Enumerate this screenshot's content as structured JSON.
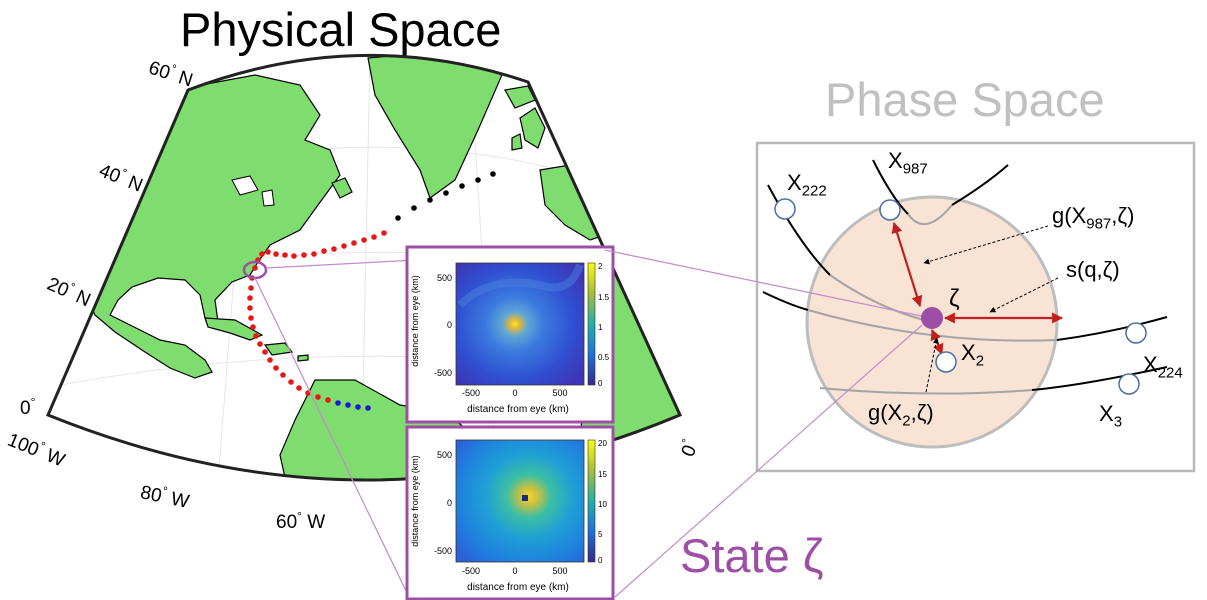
{
  "titles": {
    "physical": "Physical Space",
    "phase": "Phase Space",
    "state": "State ζ"
  },
  "map": {
    "lat_labels": [
      "60",
      "40",
      "20",
      "0"
    ],
    "lat_suffix": "N",
    "lon_labels": [
      "100",
      "80",
      "60",
      "0"
    ],
    "lon_suffix": "W",
    "degree_symbol": "°",
    "land_color": "#7fdc6e",
    "track_colors": {
      "red": "#e81818",
      "black": "#000000",
      "blue": "#1a1ad6"
    }
  },
  "heatmaps": [
    {
      "ylabel": "distance from eye (km)",
      "xlabel": "distance from eye (km)",
      "xticks": [
        "-500",
        "0",
        "500"
      ],
      "yticks": [
        "500",
        "0",
        "-500"
      ],
      "colorbar_ticks": [
        "2",
        "1.5",
        "1",
        "0.5",
        "0"
      ]
    },
    {
      "ylabel": "distance from eye (km)",
      "xlabel": "distance from eye (km)",
      "xticks": [
        "-500",
        "0",
        "500"
      ],
      "yticks": [
        "500",
        "0",
        "-500"
      ],
      "colorbar_ticks": [
        "20",
        "15",
        "10",
        "5",
        "0"
      ]
    }
  ],
  "phase": {
    "state_symbol": "ζ",
    "points": [
      {
        "base": "X",
        "sub": "222"
      },
      {
        "base": "X",
        "sub": "987"
      },
      {
        "base": "X",
        "sub": "2"
      },
      {
        "base": "X",
        "sub": "224"
      },
      {
        "base": "X",
        "sub": "3"
      }
    ],
    "annotations": {
      "g987": {
        "pre": "g(X",
        "sub": "987",
        "post": ",ζ)"
      },
      "sq": "s(q,ζ)",
      "g2": {
        "pre": "g(X",
        "sub": "2",
        "post": ",ζ)"
      }
    },
    "colors": {
      "state": "#9e4fa5",
      "arrow": "#c0201e",
      "ball": "#f8e3d4"
    }
  }
}
